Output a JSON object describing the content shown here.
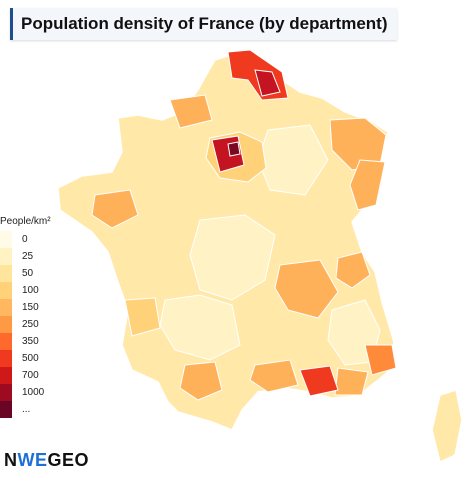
{
  "title": "Population density of France (by department)",
  "legend": {
    "title": "People/km²",
    "entries": [
      {
        "label": "0",
        "color": "#fffbe6"
      },
      {
        "label": "25",
        "color": "#fff3c4"
      },
      {
        "label": "50",
        "color": "#ffe49b"
      },
      {
        "label": "100",
        "color": "#ffd27a"
      },
      {
        "label": "150",
        "color": "#ffb860"
      },
      {
        "label": "250",
        "color": "#ff9a44"
      },
      {
        "label": "350",
        "color": "#ff6a2c"
      },
      {
        "label": "500",
        "color": "#ef3a1f"
      },
      {
        "label": "700",
        "color": "#d01818"
      },
      {
        "label": "1000",
        "color": "#9e0a22"
      },
      {
        "label": "...",
        "color": "#6a0526"
      }
    ]
  },
  "brand": {
    "prefix": "N",
    "accent": "WE",
    "suffix": "GEO"
  },
  "map_colors": {
    "base": "#ffe8a8",
    "light": "#fff3c6",
    "medium": "#ffd27a",
    "orange": "#ffb15a",
    "dark_orange": "#ff8a3a",
    "red": "#ef3a1f",
    "dark_red": "#c41422",
    "darkest": "#7a0a24",
    "border": "#ffffff"
  }
}
